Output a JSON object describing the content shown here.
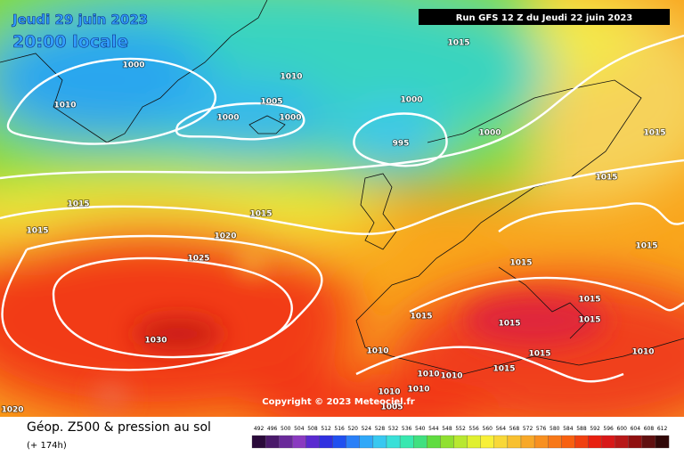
{
  "header": {
    "date": "Jeudi 29 juin 2023",
    "time": "20:00 locale",
    "run": "Run GFS 12 Z du Jeudi 22 juin 2023"
  },
  "isobars": [
    "1000",
    "1010",
    "1010",
    "1005",
    "1000",
    "1000",
    "1000",
    "995",
    "1000",
    "1015",
    "1015",
    "1015",
    "1015",
    "1015",
    "1015",
    "1020",
    "1025",
    "1015",
    "1015",
    "1015",
    "1015",
    "1015",
    "1015",
    "1015",
    "1010",
    "1010",
    "1015",
    "1030",
    "1010",
    "1010",
    "1010",
    "1010",
    "1005",
    "1020"
  ],
  "copyright": "Copyright © 2023 Meteociel.fr",
  "footer": {
    "title": "Géop. Z500 & pression au sol",
    "lead": "(+ 174h)"
  },
  "legend": {
    "scale": [
      492,
      496,
      500,
      504,
      508,
      512,
      516,
      520,
      524,
      528,
      532,
      536,
      540,
      544,
      548,
      552,
      556,
      560,
      564,
      568,
      572,
      576,
      580,
      584,
      588,
      592,
      596,
      600,
      604,
      608,
      612
    ]
  }
}
